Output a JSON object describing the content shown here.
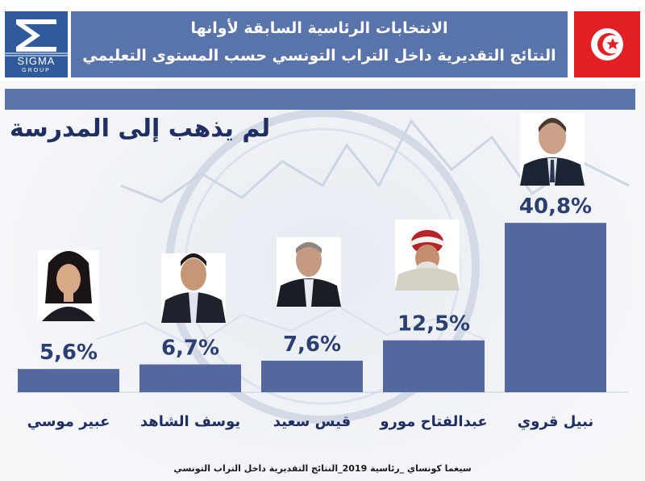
{
  "header": {
    "title_line1": "الانتخابات الرئاسية السابقة لأوانها",
    "title_line2": "النتائج التقديرية داخل التراب التونسي حسب المستوى التعليمي",
    "logo_text": "SIGMA",
    "logo_sub": "GROUP"
  },
  "subtitle": "لم يذهب إلى المدرسة",
  "footer": "سيغما كونساي _رئاسية 2019_النتائج التقديرية داخل التراب التونسي",
  "colors": {
    "bar": "#54679f",
    "header": "#5874aa",
    "flag_red": "#e31f26",
    "value_text": "#2c3f73",
    "name_text": "#1f2f63"
  },
  "chart_data": {
    "type": "bar",
    "categories": [
      "عبير موسي",
      "يوسف الشاهد",
      "قيس سعيد",
      "عبدالفتاح مورو",
      "نبيل قروي"
    ],
    "values": [
      5.6,
      6.7,
      7.6,
      12.5,
      40.8
    ],
    "value_labels": [
      "5,6%",
      "6,7%",
      "7,6%",
      "12,5%",
      "40,8%"
    ],
    "unit": "%",
    "ylim": [
      0,
      42
    ],
    "grid": false,
    "legend": "none"
  }
}
